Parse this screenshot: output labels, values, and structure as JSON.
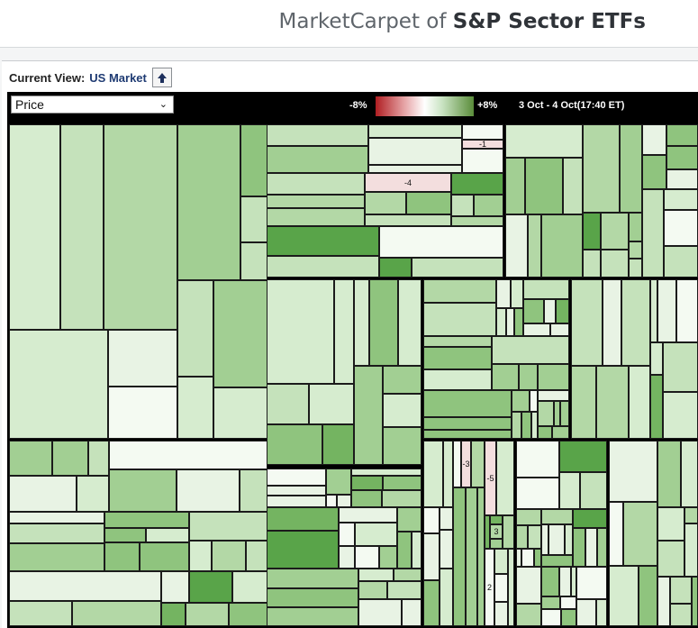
{
  "header": {
    "title_prefix": "MarketCarpet of ",
    "title_bold": "S&P Sector ETFs"
  },
  "viewbar": {
    "label": "Current View:",
    "value": "US Market",
    "up_icon": "arrow-up-icon"
  },
  "controls": {
    "metric_selected": "Price",
    "scale_min_label": "-8%",
    "scale_max_label": "+8%",
    "date_range": "3 Oct - 4 Oct(17:40 ET)",
    "colors": {
      "negative": "#b01e22",
      "neutral": "#ffffff",
      "positive": "#5a8d3a"
    }
  },
  "cell_labels": [
    "-1",
    "-4",
    "-3",
    "-5",
    "3",
    "2"
  ]
}
